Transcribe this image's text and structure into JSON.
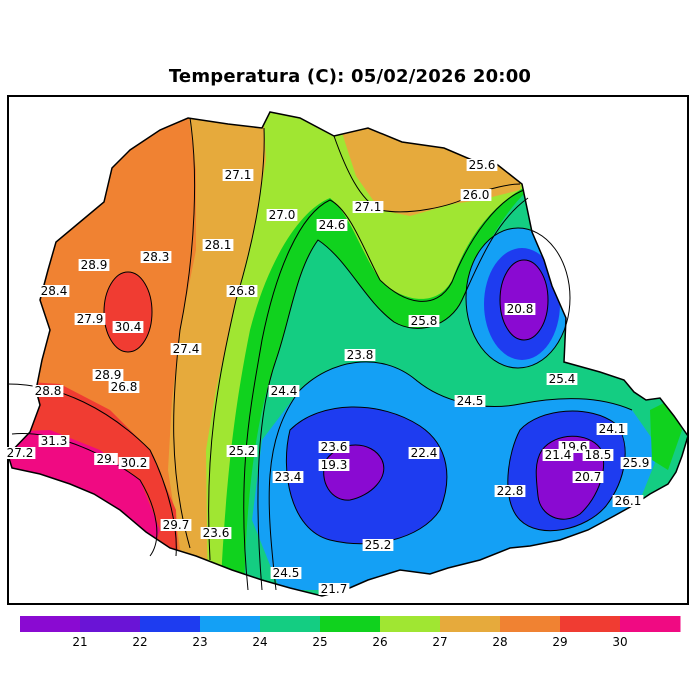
{
  "title": "Temperatura (C): 05/02/2026 20:00",
  "legend": {
    "tick_labels": [
      "21",
      "22",
      "23",
      "24",
      "25",
      "26",
      "27",
      "28",
      "29",
      "30"
    ],
    "colors": [
      "#8a0ad2",
      "#6a14d6",
      "#1e3cf0",
      "#14a0f5",
      "#14cd82",
      "#10d21e",
      "#a0e632",
      "#e6aa3c",
      "#f08232",
      "#f03c32",
      "#f00a82"
    ]
  },
  "isotherm_labels": [
    {
      "text": "25.6"
    },
    {
      "text": "27.1"
    },
    {
      "text": "26.0"
    },
    {
      "text": "27.0"
    },
    {
      "text": "27.1"
    },
    {
      "text": "24.6"
    },
    {
      "text": "28.1"
    },
    {
      "text": "28.3"
    },
    {
      "text": "28.9"
    },
    {
      "text": "28.4"
    },
    {
      "text": "26.8"
    },
    {
      "text": "20.8"
    },
    {
      "text": "27.9"
    },
    {
      "text": "30.4"
    },
    {
      "text": "25.8"
    },
    {
      "text": "27.4"
    },
    {
      "text": "23.8"
    },
    {
      "text": "28.9"
    },
    {
      "text": "26.8"
    },
    {
      "text": "25.4"
    },
    {
      "text": "28.8"
    },
    {
      "text": "24.4"
    },
    {
      "text": "24.5"
    },
    {
      "text": "24.1"
    },
    {
      "text": "31.3"
    },
    {
      "text": "23.6"
    },
    {
      "text": "19.6"
    },
    {
      "text": "27.2"
    },
    {
      "text": "25.2"
    },
    {
      "text": "22.4"
    },
    {
      "text": "21.4"
    },
    {
      "text": "18.5"
    },
    {
      "text": "19.3"
    },
    {
      "text": "29."
    },
    {
      "text": "30.2"
    },
    {
      "text": "25.9"
    },
    {
      "text": "23.4"
    },
    {
      "text": "20.7"
    },
    {
      "text": "22.8"
    },
    {
      "text": "26.1"
    },
    {
      "text": "29.7"
    },
    {
      "text": "23.6"
    },
    {
      "text": "25.2"
    },
    {
      "text": "24.5"
    },
    {
      "text": "21.7"
    }
  ]
}
